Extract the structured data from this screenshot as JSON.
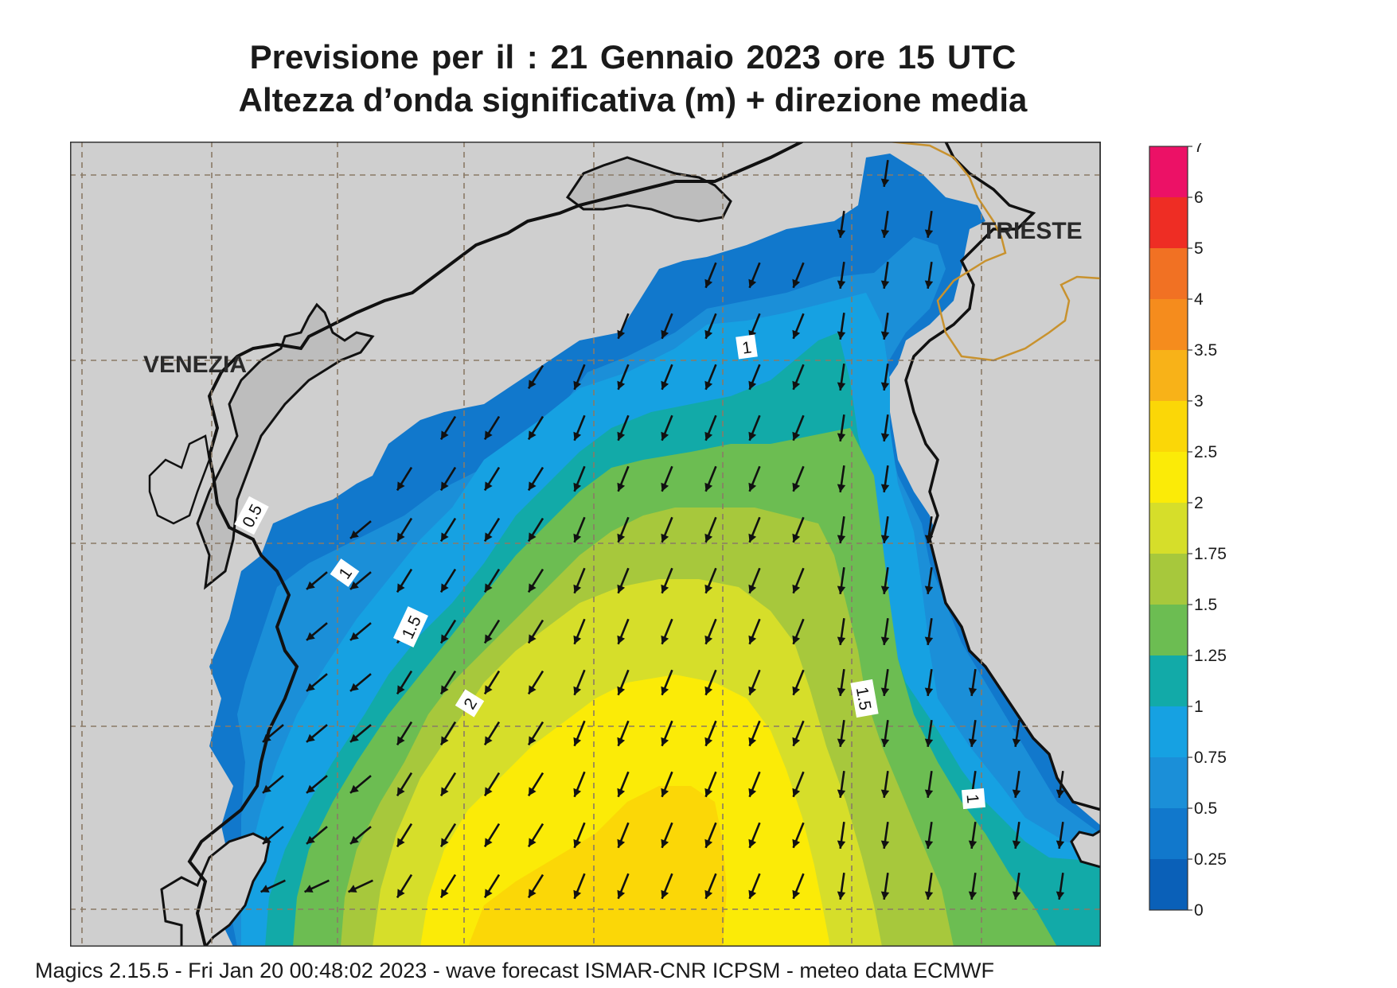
{
  "title": {
    "line1": "Previsione per il  :  21  Gennaio  2023   ore 15 UTC",
    "line2": "Altezza d’onda significativa (m) + direzione media"
  },
  "cities": {
    "venezia": "VENEZIA",
    "trieste": "TRIESTE"
  },
  "contour_labels": [
    "0.5",
    "1",
    "1",
    "1.5",
    "1.5",
    "2",
    "1"
  ],
  "colorbar": {
    "ticks": [
      "0",
      "0.25",
      "0.5",
      "0.75",
      "1",
      "1.25",
      "1.5",
      "1.75",
      "2",
      "2.5",
      "3",
      "3.5",
      "4",
      "5",
      "6",
      "7"
    ],
    "colors": [
      "#0a60b8",
      "#1178cc",
      "#1b8fd8",
      "#16a1e2",
      "#12aaa8",
      "#6cbd52",
      "#a7c83c",
      "#d6de2a",
      "#fbeb07",
      "#fbd707",
      "#f8b218",
      "#f58c1d",
      "#f17123",
      "#ee2d24",
      "#ec1166"
    ]
  },
  "chart_data": {
    "type": "heatmap",
    "variable": "Altezza d’onda significativa (m)",
    "levels": [
      0,
      0.25,
      0.5,
      0.75,
      1,
      1.25,
      1.5,
      1.75,
      2,
      2.5,
      3,
      3.5,
      4,
      5,
      6,
      7
    ],
    "mean_direction": "SW"
  },
  "footer": "Magics 2.15.5 - Fri Jan 20 00:48:02 2023 - wave forecast  ISMAR-CNR  ICPSM - meteo data   ECMWF",
  "colors": {
    "land": "#cfcfcf",
    "coast": "#111111",
    "border": "#c8922e",
    "grid": "#8a7a66"
  }
}
